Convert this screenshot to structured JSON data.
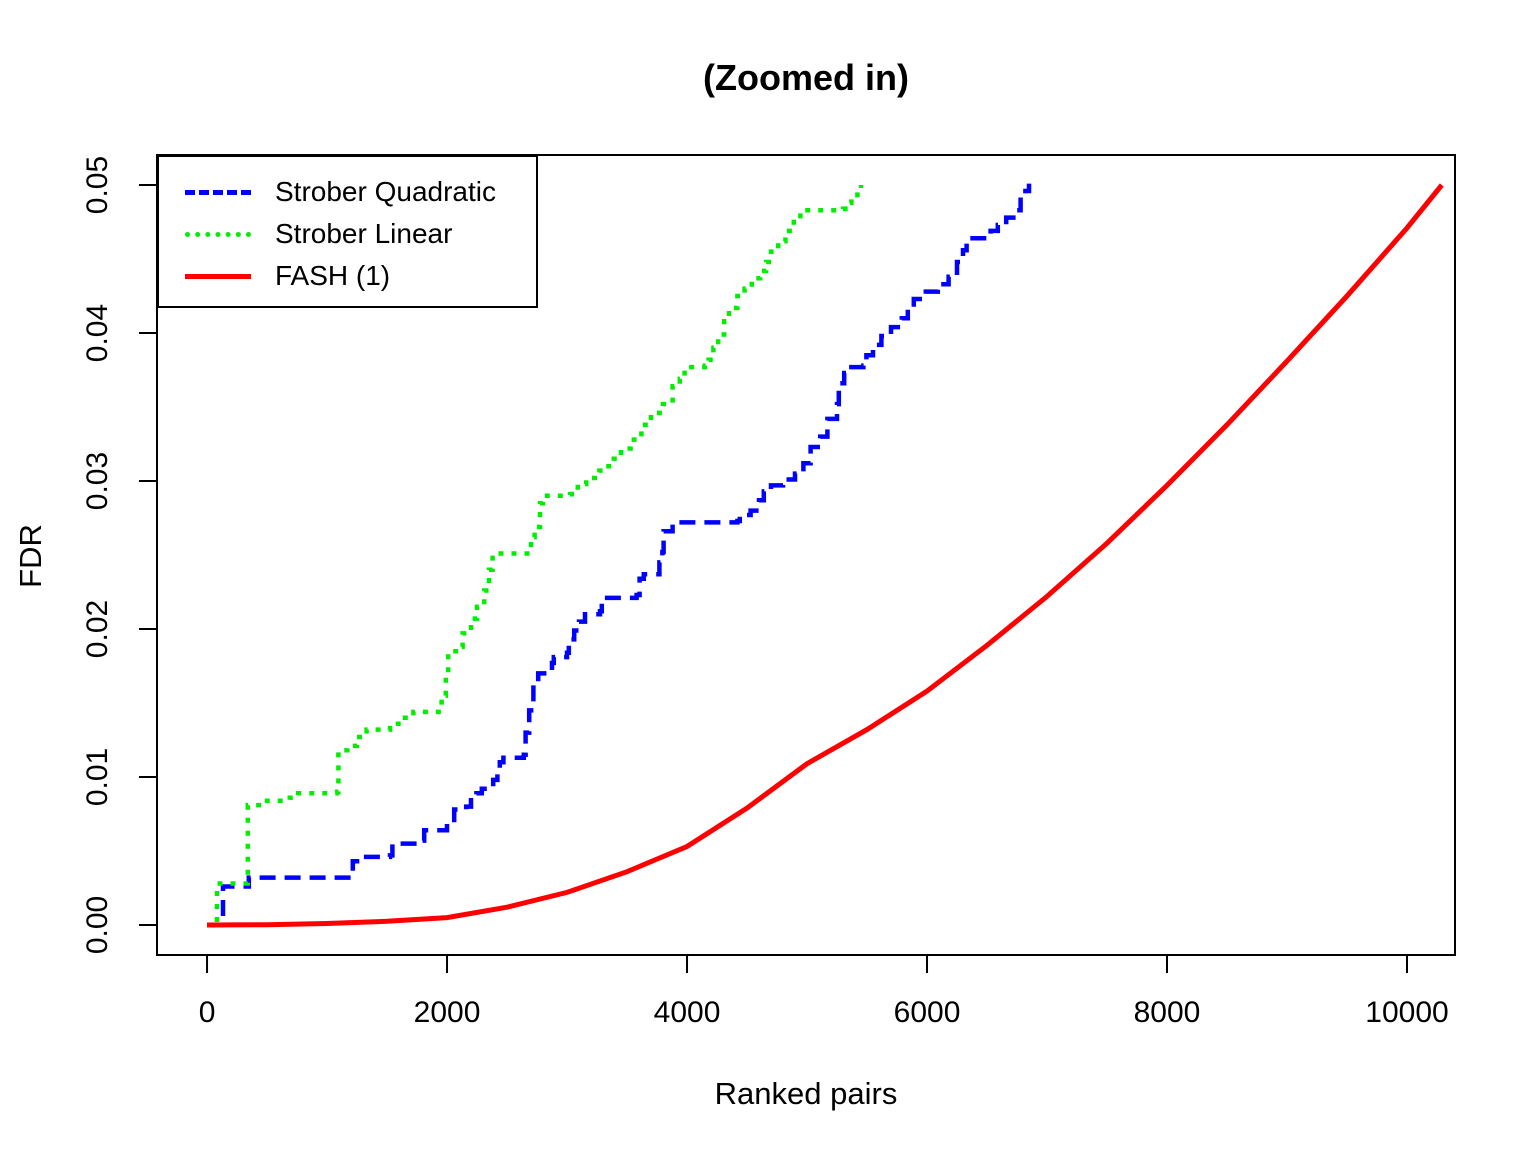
{
  "chart_data": {
    "type": "line",
    "title": "(Zoomed in)",
    "xlabel": "Ranked pairs",
    "ylabel": "FDR",
    "xlim": [
      -417,
      10400
    ],
    "ylim": [
      -0.00203,
      0.05203
    ],
    "x_ticks": [
      0,
      2000,
      4000,
      6000,
      8000,
      10000
    ],
    "x_tick_labels": [
      "0",
      "2000",
      "4000",
      "6000",
      "8000",
      "10000"
    ],
    "y_ticks": [
      0,
      0.01,
      0.02,
      0.03,
      0.04,
      0.05
    ],
    "y_tick_labels": [
      "0.00",
      "0.01",
      "0.02",
      "0.03",
      "0.04",
      "0.05"
    ],
    "grid": false,
    "legend_position": "top-left",
    "axis_color": "#000000",
    "background_color": "#ffffff",
    "series": [
      {
        "name": "Strober Quadratic",
        "color": "#0000ff",
        "line_style": "dashed",
        "step": true,
        "points": [
          [
            0,
            0
          ],
          [
            125,
            0
          ],
          [
            133,
            0.0026
          ],
          [
            340,
            0.0026
          ],
          [
            348,
            0.0032
          ],
          [
            1200,
            0.0032
          ],
          [
            1215,
            0.0043
          ],
          [
            1280,
            0.0046
          ],
          [
            1525,
            0.0047
          ],
          [
            1545,
            0.0055
          ],
          [
            1775,
            0.0057
          ],
          [
            1810,
            0.0064
          ],
          [
            2000,
            0.0069
          ],
          [
            2060,
            0.0078
          ],
          [
            2160,
            0.008
          ],
          [
            2200,
            0.0086
          ],
          [
            2245,
            0.0089
          ],
          [
            2290,
            0.0092
          ],
          [
            2385,
            0.0098
          ],
          [
            2420,
            0.0106
          ],
          [
            2440,
            0.011
          ],
          [
            2470,
            0.0113
          ],
          [
            2640,
            0.0115
          ],
          [
            2655,
            0.013
          ],
          [
            2685,
            0.0145
          ],
          [
            2720,
            0.0163
          ],
          [
            2760,
            0.017
          ],
          [
            2875,
            0.0177
          ],
          [
            2890,
            0.0181
          ],
          [
            3000,
            0.0184
          ],
          [
            3015,
            0.0193
          ],
          [
            3060,
            0.0199
          ],
          [
            3100,
            0.0205
          ],
          [
            3150,
            0.021
          ],
          [
            3275,
            0.0212
          ],
          [
            3290,
            0.0221
          ],
          [
            3580,
            0.0223
          ],
          [
            3605,
            0.0234
          ],
          [
            3640,
            0.0237
          ],
          [
            3770,
            0.0245
          ],
          [
            3795,
            0.0252
          ],
          [
            3805,
            0.0266
          ],
          [
            3880,
            0.0272
          ],
          [
            4420,
            0.0273
          ],
          [
            4440,
            0.0277
          ],
          [
            4530,
            0.028
          ],
          [
            4600,
            0.0287
          ],
          [
            4640,
            0.0293
          ],
          [
            4700,
            0.0297
          ],
          [
            4800,
            0.0301
          ],
          [
            4900,
            0.0305
          ],
          [
            4970,
            0.0312
          ],
          [
            5030,
            0.0323
          ],
          [
            5110,
            0.033
          ],
          [
            5170,
            0.0342
          ],
          [
            5250,
            0.0352
          ],
          [
            5265,
            0.0366
          ],
          [
            5310,
            0.0373
          ],
          [
            5325,
            0.0377
          ],
          [
            5470,
            0.0378
          ],
          [
            5495,
            0.0385
          ],
          [
            5550,
            0.0392
          ],
          [
            5620,
            0.0398
          ],
          [
            5700,
            0.0404
          ],
          [
            5790,
            0.041
          ],
          [
            5840,
            0.0417
          ],
          [
            5890,
            0.0423
          ],
          [
            5990,
            0.0428
          ],
          [
            6090,
            0.0433
          ],
          [
            6180,
            0.0438
          ],
          [
            6250,
            0.0448
          ],
          [
            6300,
            0.0456
          ],
          [
            6330,
            0.0464
          ],
          [
            6500,
            0.0465
          ],
          [
            6530,
            0.0469
          ],
          [
            6590,
            0.0473
          ],
          [
            6660,
            0.0478
          ],
          [
            6740,
            0.0483
          ],
          [
            6780,
            0.049
          ],
          [
            6820,
            0.0496
          ],
          [
            6850,
            0.0501
          ]
        ]
      },
      {
        "name": "Strober Linear",
        "color": "#00ee00",
        "line_style": "dotted",
        "step": true,
        "points": [
          [
            0,
            0
          ],
          [
            75,
            0
          ],
          [
            83,
            0.0028
          ],
          [
            330,
            0.0028
          ],
          [
            340,
            0.0081
          ],
          [
            500,
            0.0084
          ],
          [
            690,
            0.0086
          ],
          [
            760,
            0.0089
          ],
          [
            1085,
            0.009
          ],
          [
            1095,
            0.0118
          ],
          [
            1170,
            0.0121
          ],
          [
            1250,
            0.0127
          ],
          [
            1330,
            0.0132
          ],
          [
            1525,
            0.0133
          ],
          [
            1560,
            0.0136
          ],
          [
            1650,
            0.014
          ],
          [
            1720,
            0.0144
          ],
          [
            1930,
            0.0146
          ],
          [
            1955,
            0.0155
          ],
          [
            1990,
            0.017
          ],
          [
            2010,
            0.0185
          ],
          [
            2100,
            0.0188
          ],
          [
            2130,
            0.0197
          ],
          [
            2200,
            0.0207
          ],
          [
            2250,
            0.0215
          ],
          [
            2310,
            0.0226
          ],
          [
            2350,
            0.024
          ],
          [
            2380,
            0.0251
          ],
          [
            2690,
            0.0253
          ],
          [
            2700,
            0.0262
          ],
          [
            2730,
            0.0269
          ],
          [
            2775,
            0.0285
          ],
          [
            2800,
            0.029
          ],
          [
            3025,
            0.0291
          ],
          [
            3040,
            0.0294
          ],
          [
            3090,
            0.0298
          ],
          [
            3160,
            0.0302
          ],
          [
            3270,
            0.0307
          ],
          [
            3320,
            0.031
          ],
          [
            3390,
            0.0315
          ],
          [
            3450,
            0.0322
          ],
          [
            3530,
            0.0328
          ],
          [
            3620,
            0.0338
          ],
          [
            3700,
            0.0346
          ],
          [
            3800,
            0.0352
          ],
          [
            3880,
            0.0364
          ],
          [
            3940,
            0.0369
          ],
          [
            3980,
            0.0377
          ],
          [
            4150,
            0.0378
          ],
          [
            4180,
            0.0382
          ],
          [
            4220,
            0.039
          ],
          [
            4260,
            0.0399
          ],
          [
            4310,
            0.0408
          ],
          [
            4350,
            0.0417
          ],
          [
            4420,
            0.0425
          ],
          [
            4480,
            0.043
          ],
          [
            4540,
            0.0437
          ],
          [
            4610,
            0.0442
          ],
          [
            4660,
            0.0448
          ],
          [
            4700,
            0.0455
          ],
          [
            4760,
            0.0462
          ],
          [
            4820,
            0.0469
          ],
          [
            4890,
            0.0475
          ],
          [
            4945,
            0.0483
          ],
          [
            5300,
            0.0484
          ],
          [
            5320,
            0.0488
          ],
          [
            5370,
            0.0491
          ],
          [
            5420,
            0.0497
          ],
          [
            5450,
            0.05
          ]
        ]
      },
      {
        "name": "FASH (1)",
        "color": "#ff0000",
        "line_style": "solid",
        "step": false,
        "points": [
          [
            0,
            0
          ],
          [
            500,
            2e-05
          ],
          [
            1000,
            0.0001
          ],
          [
            1500,
            0.00025
          ],
          [
            2000,
            0.0005
          ],
          [
            2500,
            0.0012
          ],
          [
            3000,
            0.0022
          ],
          [
            3500,
            0.0036
          ],
          [
            4000,
            0.0053
          ],
          [
            4500,
            0.0079
          ],
          [
            5000,
            0.0109
          ],
          [
            5500,
            0.0132
          ],
          [
            6000,
            0.0158
          ],
          [
            6500,
            0.0189
          ],
          [
            7000,
            0.0222
          ],
          [
            7500,
            0.0258
          ],
          [
            8000,
            0.0297
          ],
          [
            8500,
            0.0338
          ],
          [
            9000,
            0.0381
          ],
          [
            9500,
            0.0425
          ],
          [
            10000,
            0.0471
          ],
          [
            10290,
            0.05
          ]
        ]
      }
    ]
  }
}
